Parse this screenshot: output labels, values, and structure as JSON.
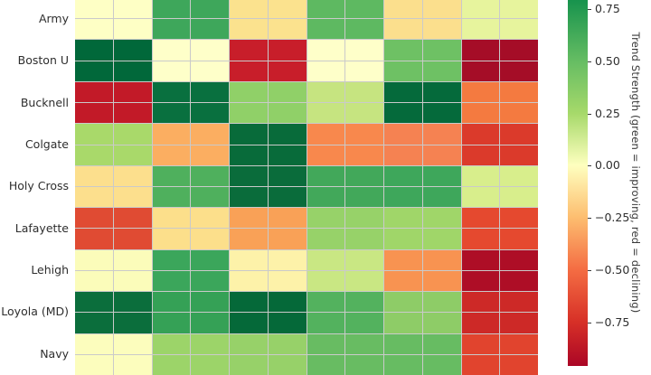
{
  "figure": {
    "background": "#ffffff",
    "gridline_color": "#cacaca"
  },
  "chart_data": {
    "type": "heatmap",
    "colormap": "RdYlGn",
    "rows": [
      "Army",
      "Boston U",
      "Bucknell",
      "Colgate",
      "Holy Cross",
      "Lafayette",
      "Lehigh",
      "Loyola (MD)",
      "Navy"
    ],
    "column_count": 6,
    "column_labels_visible": false,
    "values": [
      [
        0.02,
        0.62,
        -0.15,
        0.52,
        -0.15,
        0.12
      ],
      [
        0.95,
        0.02,
        -0.82,
        0.02,
        0.48,
        -0.95
      ],
      [
        -0.85,
        0.88,
        0.38,
        0.22,
        0.93,
        -0.48
      ],
      [
        0.3,
        -0.3,
        0.92,
        -0.42,
        -0.45,
        -0.72
      ],
      [
        -0.15,
        0.58,
        0.9,
        0.62,
        0.63,
        0.15
      ],
      [
        -0.68,
        -0.15,
        -0.35,
        0.35,
        0.33,
        -0.65
      ],
      [
        0.03,
        0.65,
        -0.05,
        0.2,
        -0.4,
        -0.93
      ],
      [
        0.9,
        0.68,
        0.93,
        0.57,
        0.4,
        -0.78
      ],
      [
        0.03,
        0.33,
        0.35,
        0.5,
        0.5,
        -0.67
      ]
    ],
    "cell_colors": [
      [
        "#feffc5",
        "#3ea75b",
        "#fbe28e",
        "#5eb961",
        "#fbdf8d",
        "#e7f49d"
      ],
      [
        "#01683a",
        "#feffc9",
        "#c81e2a",
        "#feffc9",
        "#6ec164",
        "#a50d27"
      ],
      [
        "#c21a28",
        "#09703f",
        "#90d068",
        "#c6e480",
        "#056a3b",
        "#f47a40"
      ],
      [
        "#a9d96a",
        "#fbae61",
        "#086b3a",
        "#f8884d",
        "#f58252",
        "#db3a2b"
      ],
      [
        "#fcdf8d",
        "#4fb05d",
        "#0a6c3b",
        "#42a85a",
        "#3ea75b",
        "#d8ee8c"
      ],
      [
        "#e04b33",
        "#fcdf8b",
        "#f9a157",
        "#97d269",
        "#a0d669",
        "#e5492f"
      ],
      [
        "#fbfcba",
        "#3ba65b",
        "#fdf2a9",
        "#c9e783",
        "#f89351",
        "#ae0e26"
      ],
      [
        "#0b6e3c",
        "#35a156",
        "#056939",
        "#53b25e",
        "#8ecc67",
        "#cd2927"
      ],
      [
        "#fcfdbd",
        "#9cd469",
        "#97d169",
        "#68bc62",
        "#67bc62",
        "#e1442e"
      ]
    ],
    "colorbar": {
      "label": "Trend Strength (green = improving, red = declining)",
      "ticks": [
        "0.75",
        "0.50",
        "0.25",
        "0.00",
        "−0.25",
        "−0.50",
        "−0.75"
      ],
      "tick_values": [
        0.75,
        0.5,
        0.25,
        0,
        -0.25,
        -0.5,
        -0.75
      ]
    }
  }
}
